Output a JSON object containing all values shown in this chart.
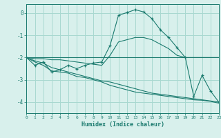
{
  "xlabel": "Humidex (Indice chaleur)",
  "x": [
    0,
    1,
    2,
    3,
    4,
    5,
    6,
    7,
    8,
    9,
    10,
    11,
    12,
    13,
    14,
    15,
    16,
    17,
    18,
    19,
    20,
    21,
    22,
    23
  ],
  "y_main": [
    -2.0,
    -2.35,
    -2.2,
    -2.65,
    -2.55,
    -2.35,
    -2.5,
    -2.35,
    -2.25,
    -2.2,
    -1.45,
    -0.1,
    0.02,
    0.15,
    0.05,
    -0.25,
    -0.75,
    -1.1,
    -1.55,
    -2.0,
    -3.75,
    -2.8,
    -3.5,
    -4.0
  ],
  "y_upper": [
    -2.0,
    -2.0,
    -2.0,
    -2.0,
    -2.0,
    -2.0,
    -2.0,
    -2.0,
    -2.0,
    -2.0,
    -2.0,
    -2.0,
    -2.0,
    -2.0,
    -2.0,
    -2.0,
    -2.0,
    -2.0,
    -2.0,
    -2.0,
    -2.0,
    -2.0,
    -2.0,
    -2.0
  ],
  "y_upper2": [
    -2.0,
    -2.05,
    -2.05,
    -2.1,
    -2.1,
    -2.15,
    -2.2,
    -2.25,
    -2.3,
    -2.35,
    -1.9,
    -1.3,
    -1.2,
    -1.1,
    -1.1,
    -1.2,
    -1.4,
    -1.6,
    -1.9,
    -2.0,
    -2.0,
    -2.0,
    -2.0,
    -2.0
  ],
  "y_lower": [
    -2.0,
    -2.15,
    -2.25,
    -2.45,
    -2.55,
    -2.65,
    -2.75,
    -2.85,
    -2.95,
    -3.05,
    -3.1,
    -3.2,
    -3.3,
    -3.4,
    -3.5,
    -3.6,
    -3.65,
    -3.7,
    -3.75,
    -3.8,
    -3.85,
    -3.9,
    -3.95,
    -4.0
  ],
  "y_lower2": [
    -2.0,
    -2.2,
    -2.35,
    -2.6,
    -2.65,
    -2.7,
    -2.85,
    -2.9,
    -3.0,
    -3.1,
    -3.25,
    -3.35,
    -3.45,
    -3.55,
    -3.6,
    -3.65,
    -3.7,
    -3.75,
    -3.8,
    -3.85,
    -3.9,
    -3.92,
    -3.97,
    -4.05
  ],
  "line_color": "#1a7a6e",
  "bg_color": "#d8f0ec",
  "grid_color": "#a8d8d0",
  "xlim": [
    0,
    23
  ],
  "ylim": [
    -4.5,
    0.4
  ],
  "yticks": [
    0,
    -1,
    -2,
    -3,
    -4
  ],
  "xticks": [
    0,
    1,
    2,
    3,
    4,
    5,
    6,
    7,
    8,
    9,
    10,
    11,
    12,
    13,
    14,
    15,
    16,
    17,
    18,
    19,
    20,
    21,
    22,
    23
  ]
}
